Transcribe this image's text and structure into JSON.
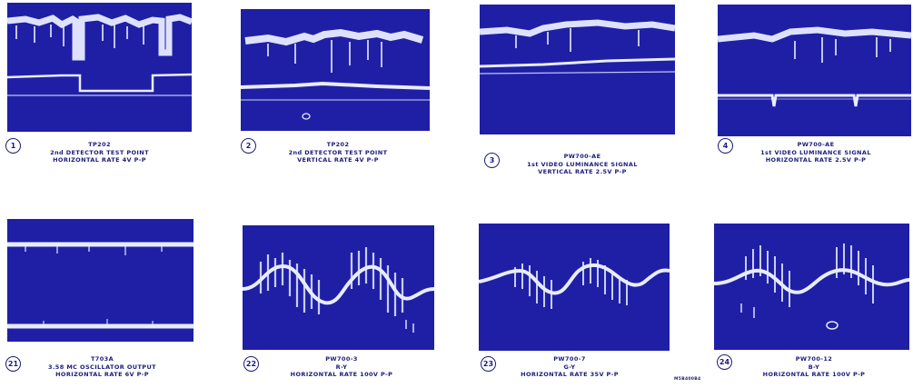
{
  "colors": {
    "screen": "#1f1fa6",
    "trace": "#e8ecff",
    "ink": "#1b1b7a"
  },
  "figures": [
    {
      "number": "1",
      "point": "TP202",
      "line2": "2nd DETECTOR TEST POINT",
      "line3": "HORIZONTAL RATE 4V P-P"
    },
    {
      "number": "2",
      "point": "TP202",
      "line2": "2nd DETECTOR TEST POINT",
      "line3": "VERTICAL RATE 4V P-P"
    },
    {
      "number": "3",
      "point": "PW700-AE",
      "line2": "1st VIDEO LUMINANCE SIGNAL",
      "line3": "VERTICAL RATE 2.5V P-P"
    },
    {
      "number": "4",
      "point": "PW700-AE",
      "line2": "1st VIDEO LUMINANCE SIGNAL",
      "line3": "HORIZONTAL RATE 2.5V P-P"
    },
    {
      "number": "21",
      "point": "T703A",
      "line2": "3.58 MC OSCILLATOR OUTPUT",
      "line3": "HORIZONTAL RATE 6V P-P"
    },
    {
      "number": "22",
      "point": "PW700-3",
      "line2": "R-Y",
      "line3": "HORIZONTAL RATE 100V P-P"
    },
    {
      "number": "23",
      "point": "PW700-7",
      "line2": "G-Y",
      "line3": "HORIZONTAL RATE 35V P-P"
    },
    {
      "number": "24",
      "point": "PW700-12",
      "line2": "B-Y",
      "line3": "HORIZONTAL RATE 100V P-P"
    }
  ],
  "document_code": "M5B400B4"
}
